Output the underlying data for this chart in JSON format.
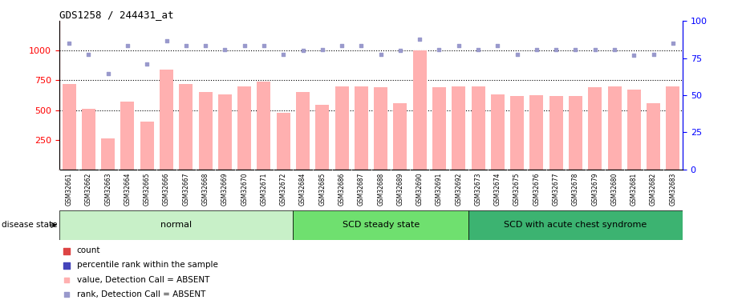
{
  "title": "GDS1258 / 244431_at",
  "samples": [
    "GSM32661",
    "GSM32662",
    "GSM32663",
    "GSM32664",
    "GSM32665",
    "GSM32666",
    "GSM32667",
    "GSM32668",
    "GSM32669",
    "GSM32670",
    "GSM32671",
    "GSM32672",
    "GSM32684",
    "GSM32685",
    "GSM32686",
    "GSM32687",
    "GSM32688",
    "GSM32689",
    "GSM32690",
    "GSM32691",
    "GSM32692",
    "GSM32673",
    "GSM32674",
    "GSM32675",
    "GSM32676",
    "GSM32677",
    "GSM32678",
    "GSM32679",
    "GSM32680",
    "GSM32681",
    "GSM32682",
    "GSM32683"
  ],
  "bar_values": [
    720,
    510,
    260,
    570,
    400,
    840,
    720,
    650,
    630,
    700,
    740,
    480,
    650,
    545,
    700,
    700,
    695,
    560,
    1000,
    690,
    700,
    700,
    630,
    620,
    625,
    620,
    620,
    690,
    700,
    670,
    560,
    700
  ],
  "scatter_values": [
    1060,
    970,
    810,
    1040,
    890,
    1080,
    1040,
    1040,
    1010,
    1040,
    1040,
    970,
    1000,
    1010,
    1040,
    1040,
    970,
    1000,
    1100,
    1010,
    1040,
    1010,
    1040,
    970,
    1010,
    1010,
    1010,
    1010,
    1010,
    960,
    970,
    1060
  ],
  "groups": [
    {
      "label": "normal",
      "start": 0,
      "end": 11,
      "color": "#c8f0c8"
    },
    {
      "label": "SCD steady state",
      "start": 12,
      "end": 20,
      "color": "#6fe06f"
    },
    {
      "label": "SCD with acute chest syndrome",
      "start": 21,
      "end": 31,
      "color": "#3cb371"
    }
  ],
  "bar_color": "#ffb0b0",
  "scatter_color": "#9999cc",
  "ylim_left": [
    0,
    1250
  ],
  "ylim_right": [
    0,
    100
  ],
  "yticks_left": [
    250,
    500,
    750,
    1000
  ],
  "yticks_right": [
    0,
    25,
    50,
    75,
    100
  ],
  "hlines": [
    500,
    750,
    1000
  ],
  "disease_state_label": "disease state",
  "legend_items": [
    {
      "label": "count",
      "color": "#dd4444",
      "marker": "s",
      "size": 30
    },
    {
      "label": "percentile rank within the sample",
      "color": "#4444bb",
      "marker": "s",
      "size": 30
    },
    {
      "label": "value, Detection Call = ABSENT",
      "color": "#ffb0b0",
      "marker": "s",
      "size": 20
    },
    {
      "label": "rank, Detection Call = ABSENT",
      "color": "#9999cc",
      "marker": "s",
      "size": 20
    }
  ]
}
